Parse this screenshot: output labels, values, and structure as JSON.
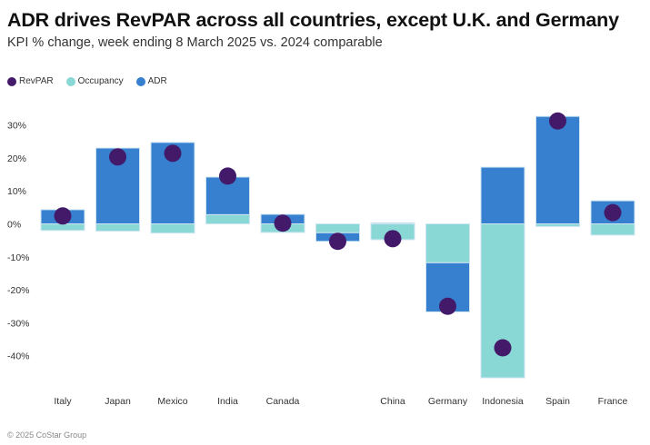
{
  "chart_data": {
    "type": "bar",
    "stacked": true,
    "title": "ADR drives RevPAR across all countries, except U.K. and Germany",
    "subtitle": "KPI % change, week ending 8 March 2025 vs. 2024 comparable",
    "categories": [
      "Italy",
      "Japan",
      "Mexico",
      "India",
      "Canada",
      "",
      "China",
      "Germany",
      "Indonesia",
      "Spain",
      "France"
    ],
    "series": [
      {
        "name": "RevPAR",
        "type": "dot",
        "color": "#43196A",
        "values": [
          2.4,
          20.3,
          21.4,
          14.5,
          0.2,
          -5.3,
          -4.5,
          -25.0,
          -37.6,
          31.2,
          3.4
        ]
      },
      {
        "name": "Occupancy",
        "type": "bar",
        "color": "#8AD8D5",
        "values": [
          -2.0,
          -2.2,
          -2.8,
          2.8,
          -2.6,
          -2.7,
          -4.8,
          -11.8,
          -46.7,
          -0.8,
          -3.4
        ]
      },
      {
        "name": "ADR",
        "type": "bar",
        "color": "#3680CF",
        "values": [
          4.3,
          23.0,
          24.7,
          11.4,
          2.9,
          -2.6,
          0.3,
          -14.9,
          17.2,
          32.6,
          7.0
        ]
      }
    ],
    "yticks": [
      "30%",
      "20%",
      "10%",
      "0%",
      "-10%",
      "-20%",
      "-30%",
      "-40%"
    ],
    "ytick_values": [
      30,
      20,
      10,
      0,
      -10,
      -20,
      -30,
      -40
    ],
    "ylim": [
      -50,
      38
    ],
    "grid": false,
    "legend": "top-left"
  },
  "footer": "© 2025 CoStar Group"
}
